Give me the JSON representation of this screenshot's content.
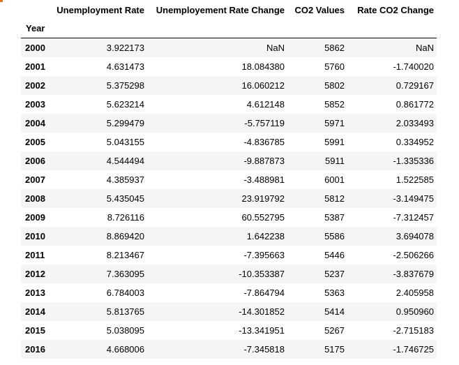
{
  "table": {
    "index_name": "Year",
    "columns": [
      "Unemployment Rate",
      "Unemployement Rate Change",
      "CO2 Values",
      "Rate CO2 Change"
    ],
    "rows": [
      {
        "year": "2000",
        "unemployment_rate": "3.922173",
        "unemployment_rate_change": "NaN",
        "co2_values": "5862",
        "rate_co2_change": "NaN"
      },
      {
        "year": "2001",
        "unemployment_rate": "4.631473",
        "unemployment_rate_change": "18.084380",
        "co2_values": "5760",
        "rate_co2_change": "-1.740020"
      },
      {
        "year": "2002",
        "unemployment_rate": "5.375298",
        "unemployment_rate_change": "16.060212",
        "co2_values": "5802",
        "rate_co2_change": "0.729167"
      },
      {
        "year": "2003",
        "unemployment_rate": "5.623214",
        "unemployment_rate_change": "4.612148",
        "co2_values": "5852",
        "rate_co2_change": "0.861772"
      },
      {
        "year": "2004",
        "unemployment_rate": "5.299479",
        "unemployment_rate_change": "-5.757119",
        "co2_values": "5971",
        "rate_co2_change": "2.033493"
      },
      {
        "year": "2005",
        "unemployment_rate": "5.043155",
        "unemployment_rate_change": "-4.836785",
        "co2_values": "5991",
        "rate_co2_change": "0.334952"
      },
      {
        "year": "2006",
        "unemployment_rate": "4.544494",
        "unemployment_rate_change": "-9.887873",
        "co2_values": "5911",
        "rate_co2_change": "-1.335336"
      },
      {
        "year": "2007",
        "unemployment_rate": "4.385937",
        "unemployment_rate_change": "-3.488981",
        "co2_values": "6001",
        "rate_co2_change": "1.522585"
      },
      {
        "year": "2008",
        "unemployment_rate": "5.435045",
        "unemployment_rate_change": "23.919792",
        "co2_values": "5812",
        "rate_co2_change": "-3.149475"
      },
      {
        "year": "2009",
        "unemployment_rate": "8.726116",
        "unemployment_rate_change": "60.552795",
        "co2_values": "5387",
        "rate_co2_change": "-7.312457"
      },
      {
        "year": "2010",
        "unemployment_rate": "8.869420",
        "unemployment_rate_change": "1.642238",
        "co2_values": "5586",
        "rate_co2_change": "3.694078"
      },
      {
        "year": "2011",
        "unemployment_rate": "8.213467",
        "unemployment_rate_change": "-7.395663",
        "co2_values": "5446",
        "rate_co2_change": "-2.506266"
      },
      {
        "year": "2012",
        "unemployment_rate": "7.363095",
        "unemployment_rate_change": "-10.353387",
        "co2_values": "5237",
        "rate_co2_change": "-3.837679"
      },
      {
        "year": "2013",
        "unemployment_rate": "6.784003",
        "unemployment_rate_change": "-7.864794",
        "co2_values": "5363",
        "rate_co2_change": "2.405958"
      },
      {
        "year": "2014",
        "unemployment_rate": "5.813765",
        "unemployment_rate_change": "-14.301852",
        "co2_values": "5414",
        "rate_co2_change": "0.950960"
      },
      {
        "year": "2015",
        "unemployment_rate": "5.038095",
        "unemployment_rate_change": "-13.341951",
        "co2_values": "5267",
        "rate_co2_change": "-2.715183"
      },
      {
        "year": "2016",
        "unemployment_rate": "4.668006",
        "unemployment_rate_change": "-7.345818",
        "co2_values": "5175",
        "rate_co2_change": "-1.746725"
      }
    ]
  }
}
